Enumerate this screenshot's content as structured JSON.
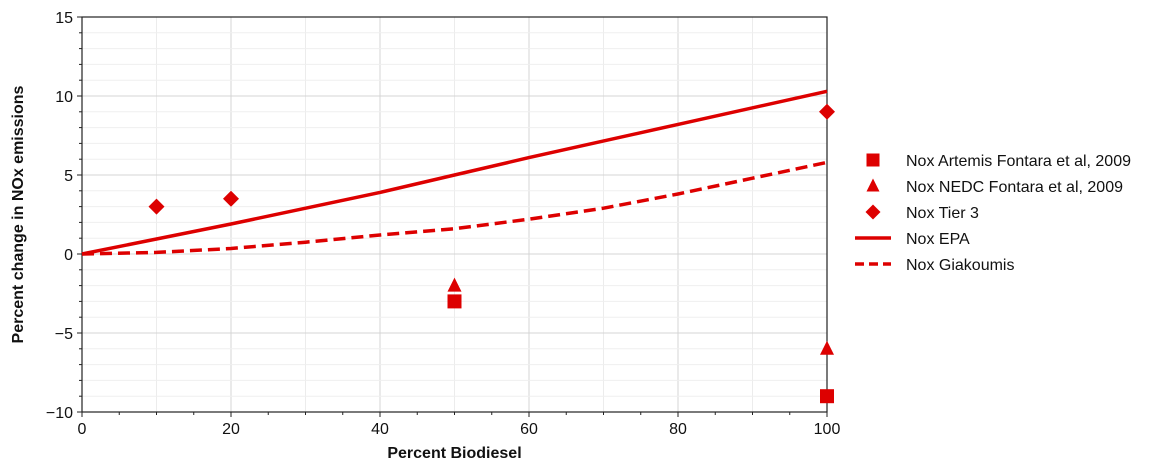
{
  "chart_data": {
    "type": "scatter",
    "title": "",
    "xlabel": "Percent Biodiesel",
    "ylabel": "Percent change in NOx emissions",
    "xlim": [
      0,
      100
    ],
    "ylim": [
      -10,
      15
    ],
    "xticks": [
      0,
      20,
      40,
      60,
      80,
      100
    ],
    "yticks": [
      -10,
      -5,
      0,
      5,
      10,
      15
    ],
    "grid": true,
    "legend_position": "right",
    "color": "#dd0000",
    "series": [
      {
        "name": "Nox Artemis Fontara et al, 2009",
        "kind": "marker",
        "marker": "square",
        "points": [
          [
            50,
            -3
          ],
          [
            100,
            -9
          ]
        ]
      },
      {
        "name": "Nox NEDC Fontara et al, 2009",
        "kind": "marker",
        "marker": "triangle",
        "points": [
          [
            50,
            -2
          ],
          [
            100,
            -6
          ]
        ]
      },
      {
        "name": "Nox Tier 3",
        "kind": "marker",
        "marker": "diamond",
        "points": [
          [
            10,
            3
          ],
          [
            20,
            3.5
          ],
          [
            100,
            9
          ]
        ]
      },
      {
        "name": "Nox EPA",
        "kind": "line",
        "style": "solid",
        "points": [
          [
            0,
            0
          ],
          [
            20,
            1.9
          ],
          [
            40,
            3.9
          ],
          [
            50,
            5
          ],
          [
            60,
            6.1
          ],
          [
            80,
            8.2
          ],
          [
            100,
            10.3
          ]
        ]
      },
      {
        "name": "Nox Giakoumis",
        "kind": "line",
        "style": "dashed",
        "points": [
          [
            0,
            0
          ],
          [
            10,
            0.1
          ],
          [
            20,
            0.35
          ],
          [
            30,
            0.75
          ],
          [
            40,
            1.2
          ],
          [
            50,
            1.6
          ],
          [
            60,
            2.2
          ],
          [
            70,
            2.9
          ],
          [
            80,
            3.8
          ],
          [
            90,
            4.8
          ],
          [
            100,
            5.8
          ]
        ]
      }
    ]
  }
}
